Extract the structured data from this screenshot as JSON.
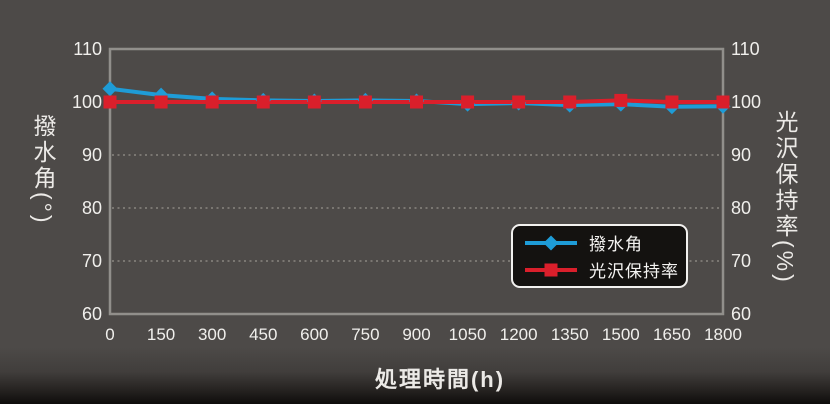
{
  "figure": {
    "background": "#4d4a48",
    "axis_color": "#918f8b",
    "grid_color": "#7a7772",
    "tick_text_color": "#f0efec"
  },
  "legend": {
    "items": [
      {
        "label": "撥水角",
        "color": "#1e9cd7",
        "marker": "diamond"
      },
      {
        "label": "光沢保持率",
        "color": "#da1f2b",
        "marker": "square"
      }
    ]
  },
  "chart_data": {
    "type": "line",
    "title": "",
    "xlabel": "処理時間(h)",
    "ylabel_left": "撥水角(°)",
    "ylabel_right": "光沢保持率(%)",
    "x": [
      0,
      150,
      300,
      450,
      600,
      750,
      900,
      1050,
      1200,
      1350,
      1500,
      1650,
      1800
    ],
    "xlim": [
      0,
      1800
    ],
    "ylim": [
      60,
      110
    ],
    "yticks": [
      110,
      100,
      90,
      80,
      70,
      60
    ],
    "grid_y": [
      100,
      90,
      80,
      70
    ],
    "grid_style": "dotted horizontal",
    "legend_position": "lower right inside plot",
    "series": [
      {
        "name": "撥水角",
        "axis": "left",
        "color": "#1e9cd7",
        "marker": "diamond",
        "values": [
          102.5,
          101.3,
          100.6,
          100.3,
          100.2,
          100.3,
          100.2,
          99.6,
          99.8,
          99.4,
          99.6,
          99.1,
          99.2
        ]
      },
      {
        "name": "光沢保持率",
        "axis": "right",
        "color": "#da1f2b",
        "marker": "square",
        "values": [
          100,
          100,
          100,
          100,
          100,
          100,
          100,
          100,
          100,
          100,
          100.3,
          100,
          100
        ]
      }
    ]
  }
}
